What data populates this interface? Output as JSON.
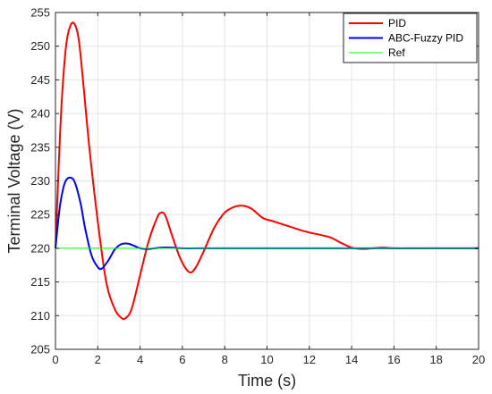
{
  "chart_data": {
    "type": "line",
    "title": "",
    "xlabel": "Time (s)",
    "ylabel": "Terminal Voltage (V)",
    "xlim": [
      0,
      20
    ],
    "ylim": [
      205,
      255
    ],
    "xticks": [
      0,
      2,
      4,
      6,
      8,
      10,
      12,
      14,
      16,
      18,
      20
    ],
    "yticks": [
      205,
      210,
      215,
      220,
      225,
      230,
      235,
      240,
      245,
      250,
      255
    ],
    "xtick_labels": [
      "0",
      "2",
      "4",
      "6",
      "8",
      "10",
      "12",
      "14",
      "16",
      "18",
      "20"
    ],
    "ytick_labels": [
      "205",
      "210",
      "215",
      "220",
      "225",
      "230",
      "235",
      "240",
      "245",
      "250",
      "255"
    ],
    "grid": true,
    "legend_position": "top-right",
    "series": [
      {
        "name": "PID",
        "color": "#ff0000",
        "x": [
          0,
          0.15,
          0.3,
          0.5,
          0.7,
          0.9,
          1.1,
          1.3,
          1.6,
          2.0,
          2.4,
          2.8,
          3.1,
          3.3,
          3.6,
          4.0,
          4.4,
          4.8,
          5.0,
          5.2,
          5.5,
          5.9,
          6.3,
          6.6,
          7.0,
          7.5,
          8.0,
          8.5,
          8.9,
          9.3,
          9.8,
          10.3,
          11.0,
          11.8,
          12.5,
          13.0,
          13.5,
          14.0,
          14.5,
          15.0,
          15.5,
          16.0,
          17.0,
          18.0,
          19.0,
          20.0
        ],
        "y": [
          220,
          232,
          242,
          250,
          253,
          253.3,
          251,
          245,
          235,
          224,
          215,
          211,
          209.7,
          209.6,
          211,
          216,
          221,
          224.5,
          225.3,
          224.8,
          222,
          218.5,
          216.5,
          217,
          219.5,
          223,
          225.3,
          226.2,
          226.3,
          225.8,
          224.5,
          224,
          223.3,
          222.5,
          222,
          221.6,
          220.8,
          220.1,
          219.9,
          220,
          220.1,
          220,
          220,
          220,
          220,
          220
        ]
      },
      {
        "name": "ABC-Fuzzy PID",
        "color": "#0000ff",
        "x": [
          0,
          0.2,
          0.4,
          0.55,
          0.7,
          0.85,
          1.0,
          1.2,
          1.4,
          1.7,
          2.0,
          2.2,
          2.5,
          2.8,
          3.1,
          3.4,
          3.7,
          4.0,
          4.4,
          5.0,
          5.5,
          6.0,
          7.0,
          8.0,
          10.0,
          12.0,
          14.0,
          16.0,
          18.0,
          20.0
        ],
        "y": [
          220,
          226,
          229.3,
          230.3,
          230.5,
          230.2,
          229,
          226.5,
          223,
          219,
          217.2,
          217,
          218.2,
          219.8,
          220.6,
          220.7,
          220.4,
          220,
          219.9,
          220.1,
          220.1,
          220,
          220,
          220,
          220,
          220,
          220,
          220,
          220,
          220
        ]
      },
      {
        "name": "Ref",
        "color": "#00ff00",
        "x": [
          0,
          20
        ],
        "y": [
          220,
          220
        ]
      }
    ]
  }
}
